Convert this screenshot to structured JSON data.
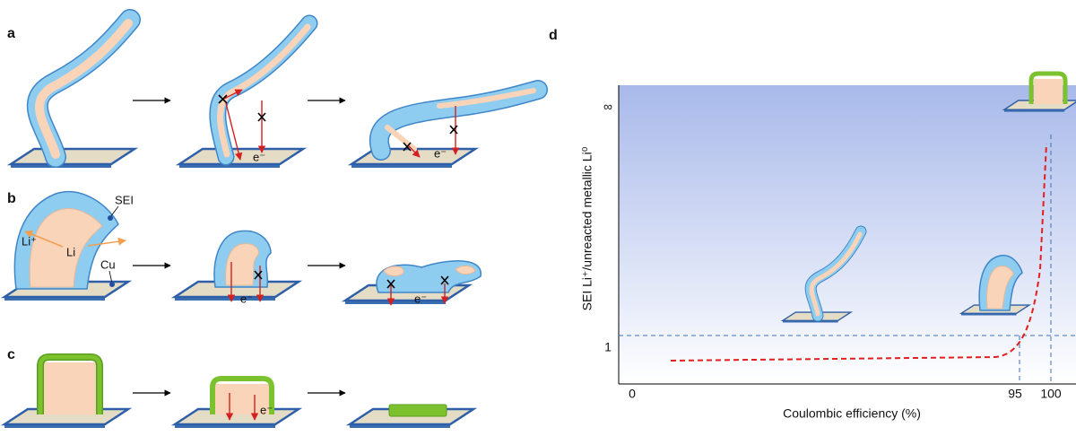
{
  "panels": {
    "a": {
      "label": "a",
      "electron_labels": [
        "e⁻",
        "e⁻"
      ]
    },
    "b": {
      "label": "b",
      "sei_label": "SEI",
      "li_ion_label": "Li⁺",
      "li_label": "Li",
      "cu_label": "Cu",
      "electron_labels": [
        "e⁻",
        "e⁻"
      ]
    },
    "c": {
      "label": "c",
      "electron_label": "e⁻"
    },
    "d": {
      "label": "d",
      "y_axis_title": "SEI Li⁺/unreacted metallic Li⁰",
      "x_axis_title": "Coulombic efficiency (%)",
      "x_ticks": [
        "0",
        "95",
        "100"
      ],
      "y_ticks": [
        "1",
        "∞"
      ]
    }
  }
}
